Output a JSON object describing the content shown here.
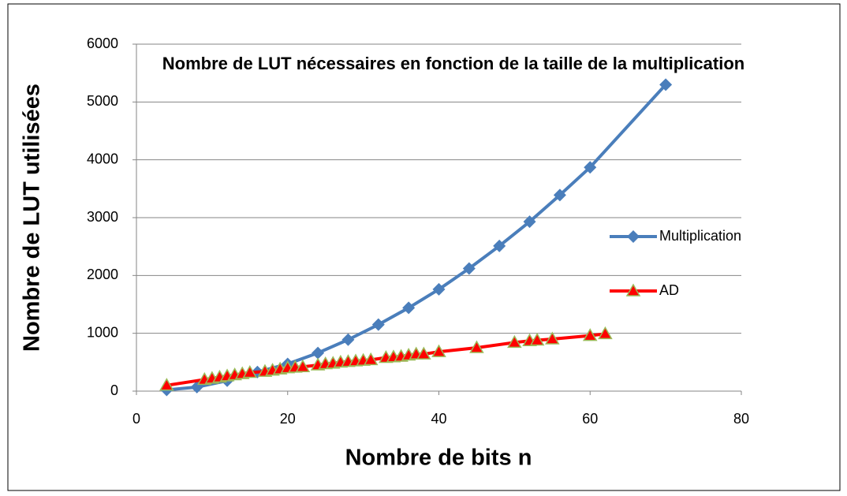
{
  "chart_data": {
    "type": "scatter",
    "title": "Nombre de LUT nécessaires en fonction de la taille de la multiplication",
    "x_label": "Nombre de bits n",
    "y_label": "Nombre de LUT utilisées",
    "xlim": [
      0,
      80
    ],
    "xticks": [
      0,
      20,
      40,
      60,
      80
    ],
    "ylim": [
      0,
      6000
    ],
    "yticks": [
      0,
      1000,
      2000,
      3000,
      4000,
      5000,
      6000
    ],
    "grid": true,
    "legend": "right",
    "series": [
      {
        "name": "Multiplication",
        "color": "#4a7ebb",
        "marker": "diamond",
        "x": [
          4,
          8,
          12,
          16,
          20,
          24,
          28,
          32,
          36,
          40,
          44,
          48,
          52,
          56,
          60,
          70
        ],
        "values": [
          20,
          70,
          180,
          330,
          470,
          660,
          890,
          1150,
          1440,
          1760,
          2120,
          2510,
          2930,
          3390,
          3870,
          5300
        ]
      },
      {
        "name": "AD",
        "color": "#ff0000",
        "marker": "triangle",
        "x": [
          4,
          9,
          10,
          11,
          12,
          13,
          14,
          15,
          17,
          18,
          19,
          20,
          21,
          22,
          24,
          25,
          26,
          27,
          28,
          29,
          30,
          31,
          33,
          34,
          35,
          36,
          37,
          38,
          40,
          45,
          50,
          52,
          53,
          55,
          60,
          62
        ],
        "values": [
          100,
          200,
          220,
          240,
          260,
          280,
          300,
          320,
          340,
          360,
          380,
          400,
          410,
          420,
          450,
          470,
          480,
          500,
          510,
          520,
          530,
          540,
          580,
          590,
          600,
          620,
          640,
          640,
          680,
          750,
          840,
          870,
          880,
          900,
          960,
          990
        ]
      }
    ]
  }
}
